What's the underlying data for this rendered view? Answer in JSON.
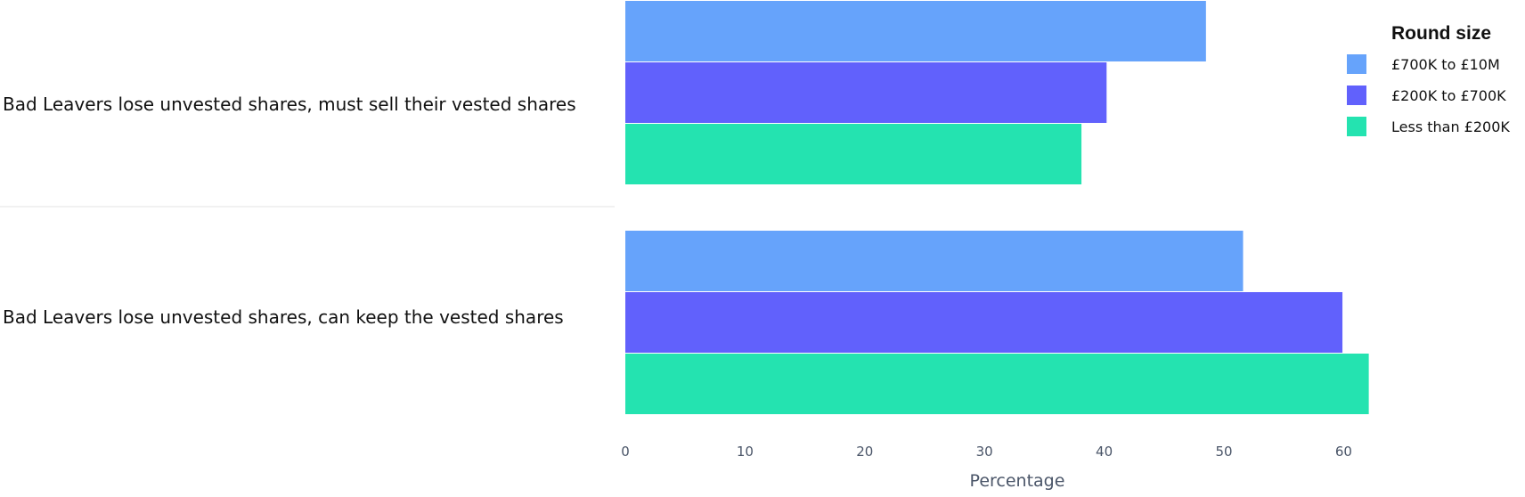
{
  "chart_data": {
    "type": "bar",
    "orientation": "horizontal",
    "categories": [
      "Bad Leavers lose unvested shares, must sell their vested shares",
      "Bad Leavers lose unvested shares, can keep the vested shares"
    ],
    "series": [
      {
        "name": "£700K to £10M",
        "color": "#66a3fb",
        "values": [
          48.5,
          51.6
        ]
      },
      {
        "name": "£200K to £700K",
        "color": "#6161fc",
        "values": [
          40.2,
          59.9
        ]
      },
      {
        "name": "Less than £200K",
        "color": "#24e3b0",
        "values": [
          38.1,
          62.1
        ]
      }
    ],
    "xlabel": "Percentage",
    "ylabel": "",
    "xlim": [
      0,
      65
    ],
    "xticks": [
      0,
      10,
      20,
      30,
      40,
      50,
      60
    ],
    "grid": false,
    "legend": {
      "title": "Round size",
      "placement": "top-right"
    }
  }
}
